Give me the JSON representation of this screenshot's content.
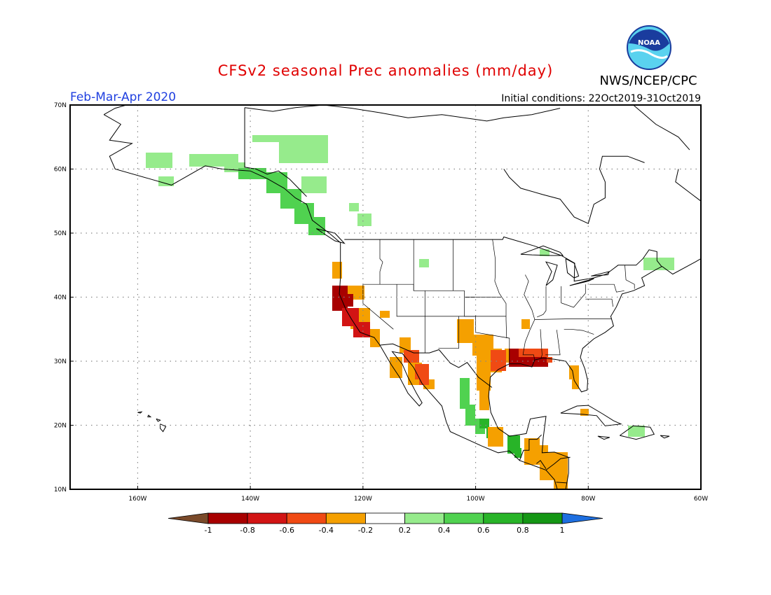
{
  "title": "CFSv2 seasonal Prec anomalies (mm/day)",
  "period": "Feb-Mar-Apr 2020",
  "initial_conditions": "Initial conditions: 22Oct2019-31Oct2019",
  "agency": "NWS/NCEP/CPC",
  "logo_text": "NOAA",
  "colors": {
    "title": "#e00000",
    "period": "#2040e0",
    "text": "#000000",
    "coast": "#000000",
    "grid": "#888888"
  },
  "map": {
    "lon_range": [
      -172,
      -60
    ],
    "lat_range": [
      10,
      70
    ],
    "lat_labels": [
      "10N",
      "20N",
      "30N",
      "40N",
      "50N",
      "60N",
      "70N"
    ],
    "lat_values": [
      10,
      20,
      30,
      40,
      50,
      60,
      70
    ],
    "lon_labels": [
      "160W",
      "140W",
      "120W",
      "100W",
      "80W",
      "60W"
    ],
    "lon_values": [
      -160,
      -140,
      -120,
      -100,
      -80,
      -60
    ]
  },
  "colorbar": {
    "labels": [
      "-1",
      "-0.8",
      "-0.6",
      "-0.4",
      "-0.2",
      "0.2",
      "0.4",
      "0.6",
      "0.8",
      "1"
    ],
    "below_color": "#7a4a2a",
    "above_color": "#1e6fe0",
    "bins": [
      {
        "color": "#a80000",
        "range": "-1 to -0.8"
      },
      {
        "color": "#d21414",
        "range": "-0.8 to -0.6"
      },
      {
        "color": "#f04a14",
        "range": "-0.6 to -0.4"
      },
      {
        "color": "#f5a000",
        "range": "-0.4 to -0.2"
      },
      {
        "color": "#ffffff",
        "range": "-0.2 to 0.2"
      },
      {
        "color": "#96eb8c",
        "range": "0.2 to 0.4"
      },
      {
        "color": "#50d250",
        "range": "0.4 to 0.6"
      },
      {
        "color": "#28b428",
        "range": "0.6 to 0.8"
      },
      {
        "color": "#149614",
        "range": "0.8 to 1"
      }
    ]
  },
  "anomaly_regions": [
    {
      "region": "Alaska south coast",
      "level": 0.3,
      "color": "#96eb8c"
    },
    {
      "region": "Yukon / northern BC",
      "level": 0.3,
      "color": "#96eb8c"
    },
    {
      "region": "Alaska panhandle",
      "level": 0.5,
      "color": "#50d250"
    },
    {
      "region": "Northern California coast",
      "level": -0.9,
      "color": "#a80000"
    },
    {
      "region": "Southern California",
      "level": -0.7,
      "color": "#d21414"
    },
    {
      "region": "California / Nevada",
      "level": -0.3,
      "color": "#f5a000"
    },
    {
      "region": "Baja California",
      "level": -0.3,
      "color": "#f5a000"
    },
    {
      "region": "Sonora",
      "level": -0.5,
      "color": "#f04a14"
    },
    {
      "region": "Texas",
      "level": -0.3,
      "color": "#f5a000"
    },
    {
      "region": "Louisiana / Mississippi",
      "level": -0.9,
      "color": "#a80000"
    },
    {
      "region": "Gulf Coast",
      "level": -0.5,
      "color": "#f04a14"
    },
    {
      "region": "Florida",
      "level": -0.3,
      "color": "#f5a000"
    },
    {
      "region": "Eastern Mexico",
      "level": 0.5,
      "color": "#50d250"
    },
    {
      "region": "Southern Mexico",
      "level": 0.7,
      "color": "#28b428"
    },
    {
      "region": "Central America",
      "level": -0.3,
      "color": "#f5a000"
    },
    {
      "region": "New England",
      "level": 0.3,
      "color": "#96eb8c"
    },
    {
      "region": "Great Lakes",
      "level": 0.3,
      "color": "#96eb8c"
    },
    {
      "region": "Hispaniola",
      "level": 0.3,
      "color": "#96eb8c"
    },
    {
      "region": "Cuba",
      "level": -0.3,
      "color": "#f5a000"
    }
  ]
}
